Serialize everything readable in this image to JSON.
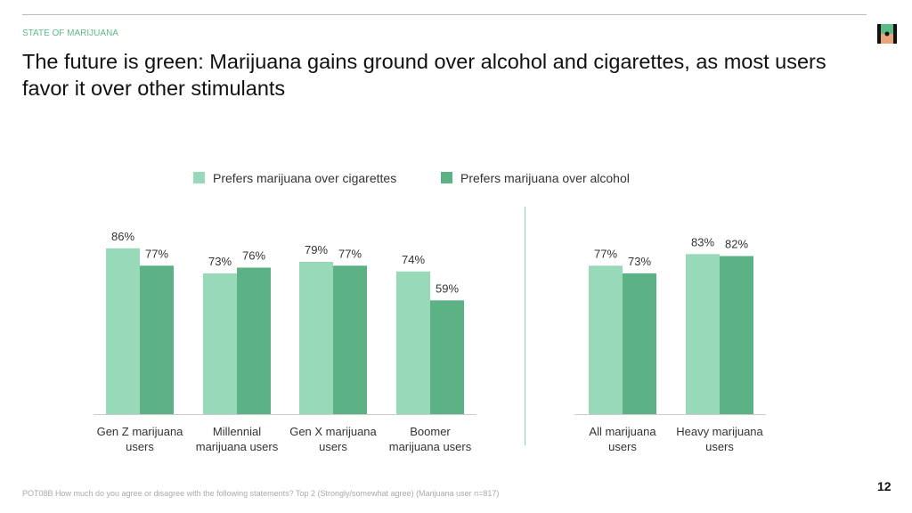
{
  "header": {
    "kicker": "STATE OF MARIJUANA",
    "title": "The future is green: Marijuana gains ground over alcohol and cigarettes, as most users favor it over other stimulants"
  },
  "footer": {
    "note": "POT08B How much do you agree or disagree with the following statements? Top 2 (Strongly/somewhat agree) (Marijuana user n=817)",
    "page": "12"
  },
  "chart_data": {
    "type": "bar",
    "categories": [
      [
        "Gen Z marijuana",
        "users"
      ],
      [
        "Millennial",
        "marijuana users"
      ],
      [
        "Gen X marijuana",
        "users"
      ],
      [
        "Boomer",
        "marijuana users"
      ],
      [
        "All marijuana",
        "users"
      ],
      [
        "Heavy marijuana",
        "users"
      ]
    ],
    "series": [
      {
        "name": "Prefers marijuana over cigarettes",
        "color": "#98d9b9",
        "values": [
          86,
          73,
          79,
          74,
          77,
          83
        ]
      },
      {
        "name": "Prefers marijuana over alcohol",
        "color": "#5db285",
        "values": [
          77,
          76,
          77,
          59,
          73,
          82
        ]
      }
    ],
    "unit": "%",
    "legend": "top",
    "grid": false
  }
}
